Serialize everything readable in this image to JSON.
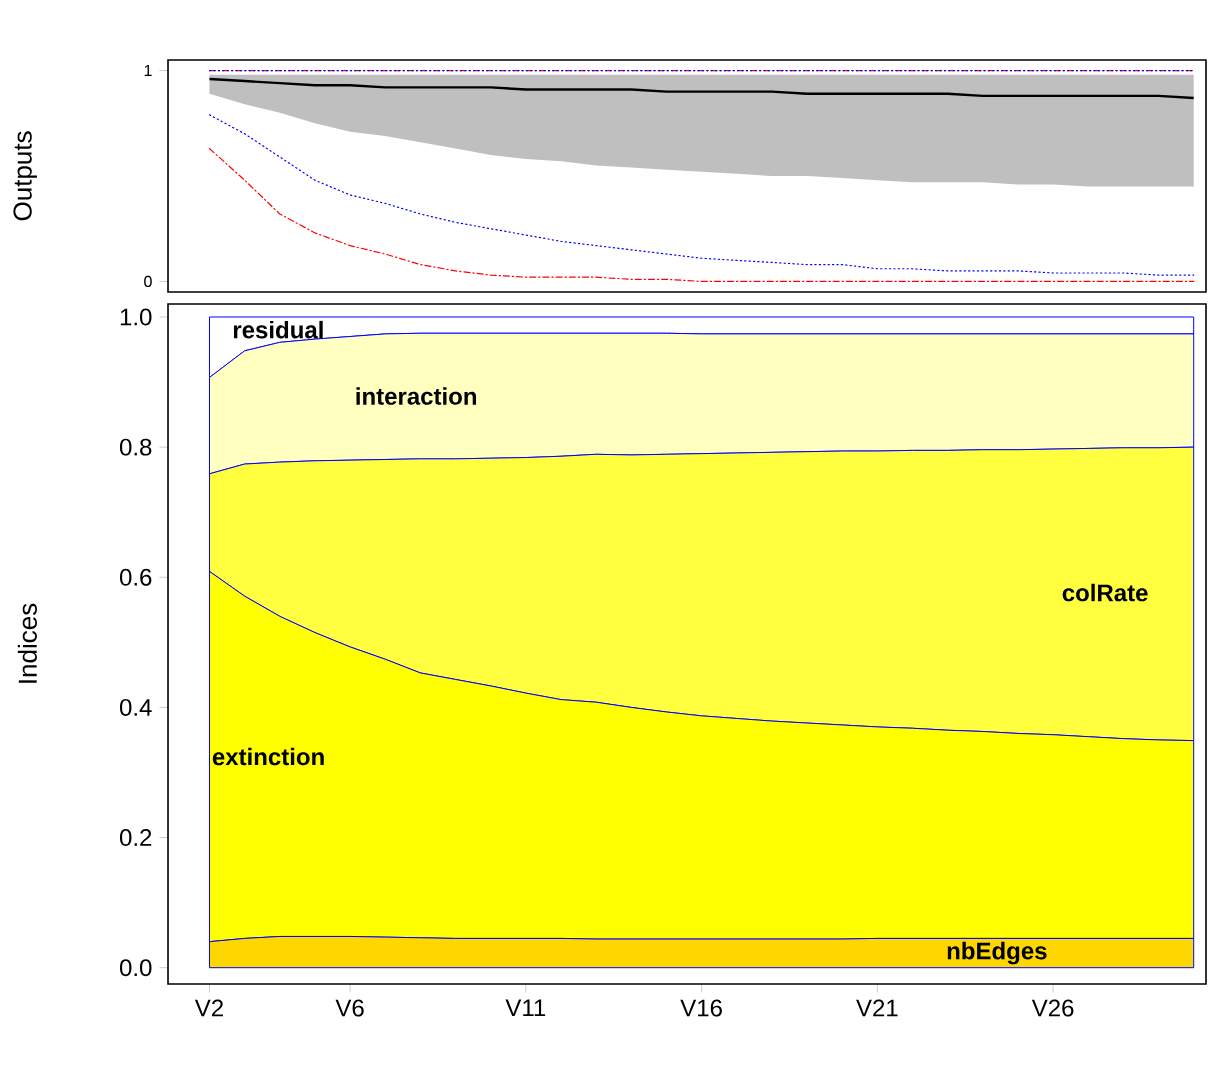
{
  "chart_data": [
    {
      "type": "line",
      "ylabel": "Outputs",
      "ylim": [
        -0.05,
        1.05
      ],
      "yticks": [
        0,
        1
      ],
      "tick_labels": "y",
      "categories": [
        null,
        null,
        null,
        null,
        null,
        null,
        null,
        null,
        null,
        null,
        null,
        null,
        null,
        null,
        null,
        null,
        null,
        null,
        null,
        null,
        null,
        null,
        null,
        null,
        null,
        null,
        null,
        null,
        null
      ],
      "series": [
        {
          "color": "#000000",
          "line_style": "solid",
          "values": [
            0.96,
            0.95,
            0.94,
            0.93,
            0.93,
            0.92,
            0.92,
            0.92,
            0.92,
            0.91,
            0.91,
            0.91,
            0.91,
            0.9,
            0.9,
            0.9,
            0.9,
            0.89,
            0.89,
            0.89,
            0.89,
            0.89,
            0.88,
            0.88,
            0.88,
            0.88,
            0.88,
            0.88,
            0.87
          ],
          "lower": [
            0.89,
            0.84,
            0.8,
            0.75,
            0.71,
            0.69,
            0.66,
            0.63,
            0.6,
            0.58,
            0.57,
            0.55,
            0.54,
            0.53,
            0.52,
            0.51,
            0.5,
            0.5,
            0.49,
            0.48,
            0.47,
            0.47,
            0.47,
            0.46,
            0.46,
            0.45,
            0.45,
            0.45,
            0.45
          ],
          "upper": [
            0.98,
            0.98,
            0.98,
            0.98,
            0.98,
            0.98,
            0.98,
            0.98,
            0.98,
            0.98,
            0.98,
            0.98,
            0.98,
            0.98,
            0.98,
            0.98,
            0.98,
            0.98,
            0.98,
            0.98,
            0.98,
            0.98,
            0.98,
            0.98,
            0.98,
            0.98,
            0.98,
            0.98,
            0.98
          ]
        },
        {
          "color": "#ff0000",
          "line_style": "dashed",
          "values": [
            0.63,
            0.48,
            0.32,
            0.23,
            0.17,
            0.13,
            0.08,
            0.05,
            0.03,
            0.02,
            0.02,
            0.02,
            0.01,
            0.01,
            0,
            0,
            0,
            0,
            0,
            0,
            0,
            0,
            0,
            0,
            0,
            0,
            0,
            0,
            0
          ]
        },
        {
          "color": "#ff0000",
          "line_style": "dashed",
          "values": [
            1,
            1,
            1,
            1,
            1,
            1,
            1,
            1,
            1,
            1,
            1,
            1,
            1,
            1,
            1,
            1,
            1,
            1,
            1,
            1,
            1,
            1,
            1,
            1,
            1,
            1,
            1,
            1,
            1
          ]
        },
        {
          "color": "#0000ff",
          "line_style": "dotted",
          "values": [
            0.79,
            0.7,
            0.59,
            0.48,
            0.41,
            0.37,
            0.32,
            0.28,
            0.25,
            0.22,
            0.19,
            0.17,
            0.15,
            0.13,
            0.11,
            0.1,
            0.09,
            0.08,
            0.08,
            0.06,
            0.06,
            0.05,
            0.05,
            0.05,
            0.04,
            0.04,
            0.04,
            0.03,
            0.03
          ]
        },
        {
          "color": "#0000ff",
          "line_style": "dotted",
          "values": [
            1,
            1,
            1,
            1,
            1,
            1,
            1,
            1,
            1,
            1,
            1,
            1,
            1,
            1,
            1,
            1,
            1,
            1,
            1,
            1,
            1,
            1,
            1,
            1,
            1,
            1,
            1,
            1,
            1
          ]
        }
      ]
    },
    {
      "type": "area",
      "stacked": true,
      "ylabel": "Indices",
      "ylim": [
        -0.025,
        1.02
      ],
      "categories": [
        "V2",
        null,
        null,
        null,
        "V6",
        null,
        null,
        null,
        null,
        "V11",
        null,
        null,
        null,
        null,
        "V16",
        null,
        null,
        null,
        null,
        "V21",
        null,
        null,
        null,
        null,
        "V26",
        null,
        null,
        null,
        null
      ],
      "yticks": [
        {
          "value": 0,
          "label": "0.0"
        },
        {
          "value": 0.2,
          "label": "0.2"
        },
        {
          "value": 0.4,
          "label": "0.4"
        },
        {
          "value": 0.6,
          "label": "0.6"
        },
        {
          "value": 0.8,
          "label": "0.8"
        },
        {
          "value": 1,
          "label": "1.0"
        }
      ],
      "series": [
        {
          "name": "nbEdges",
          "color": "#ffd700",
          "values": [
            0.04,
            0.045,
            0.048,
            0.048,
            0.048,
            0.047,
            0.046,
            0.045,
            0.045,
            0.045,
            0.045,
            0.044,
            0.044,
            0.044,
            0.044,
            0.044,
            0.044,
            0.044,
            0.044,
            0.045,
            0.045,
            0.045,
            0.045,
            0.045,
            0.045,
            0.045,
            0.045,
            0.045,
            0.045
          ]
        },
        {
          "name": "extinction",
          "color": "#ffff00",
          "values": [
            0.569,
            0.526,
            0.492,
            0.467,
            0.445,
            0.427,
            0.407,
            0.398,
            0.388,
            0.377,
            0.367,
            0.364,
            0.356,
            0.349,
            0.343,
            0.339,
            0.335,
            0.332,
            0.329,
            0.325,
            0.323,
            0.32,
            0.318,
            0.315,
            0.313,
            0.31,
            0.307,
            0.305,
            0.304
          ]
        },
        {
          "name": "colRate",
          "color": "#ffff40",
          "values": [
            0.15,
            0.203,
            0.237,
            0.264,
            0.287,
            0.307,
            0.329,
            0.339,
            0.35,
            0.362,
            0.374,
            0.381,
            0.388,
            0.396,
            0.403,
            0.408,
            0.413,
            0.417,
            0.421,
            0.424,
            0.427,
            0.43,
            0.433,
            0.436,
            0.439,
            0.443,
            0.447,
            0.449,
            0.451
          ]
        },
        {
          "name": "interaction",
          "color": "#ffffbf",
          "values": [
            0.148,
            0.174,
            0.184,
            0.187,
            0.19,
            0.193,
            0.193,
            0.193,
            0.192,
            0.191,
            0.189,
            0.186,
            0.187,
            0.186,
            0.184,
            0.183,
            0.182,
            0.181,
            0.18,
            0.18,
            0.179,
            0.179,
            0.178,
            0.178,
            0.177,
            0.176,
            0.175,
            0.175,
            0.174
          ]
        },
        {
          "name": "residual",
          "color": "#ffffff",
          "values": [
            0.093,
            0.052,
            0.039,
            0.034,
            0.03,
            0.026,
            0.025,
            0.025,
            0.025,
            0.025,
            0.025,
            0.025,
            0.025,
            0.025,
            0.026,
            0.026,
            0.026,
            0.026,
            0.026,
            0.026,
            0.026,
            0.026,
            0.026,
            0.026,
            0.026,
            0.026,
            0.026,
            0.026,
            0.026
          ]
        }
      ]
    }
  ]
}
